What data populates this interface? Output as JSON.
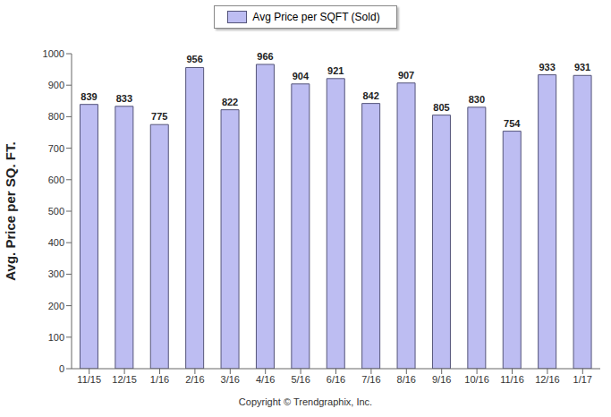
{
  "chart_data": {
    "type": "bar",
    "y_label": "Avg. Price per SQ. FT.",
    "annotations": [
      "Copyright © Trendgraphix, Inc."
    ],
    "categories": [
      "11/15",
      "12/15",
      "1/16",
      "2/16",
      "3/16",
      "4/16",
      "5/16",
      "6/16",
      "7/16",
      "8/16",
      "9/16",
      "10/16",
      "11/16",
      "12/16",
      "1/17"
    ],
    "series": [
      {
        "name": "Avg Price per SQFT (Sold)",
        "color": "#bdbdf2",
        "values": [
          839,
          833,
          775,
          956,
          822,
          966,
          904,
          921,
          842,
          907,
          805,
          830,
          754,
          933,
          931
        ]
      }
    ],
    "ylim": [
      0,
      1000
    ],
    "yticks": [
      0,
      100,
      200,
      300,
      400,
      500,
      600,
      700,
      800,
      900,
      1000
    ],
    "grid": false,
    "legend": "top",
    "data_labels": true
  }
}
